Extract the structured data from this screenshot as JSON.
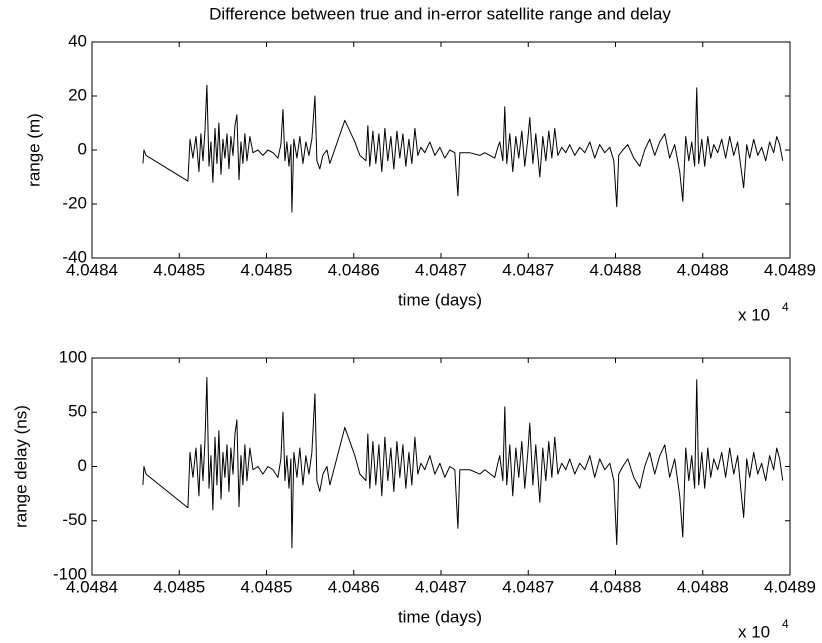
{
  "chart_data": [
    {
      "type": "line",
      "title": "Difference between true and in-error satellite range and delay",
      "xlabel": "time (days)",
      "ylabel": "range (m)",
      "xscale_text": "x 10",
      "xscale_exponent": "4",
      "color": "#000000",
      "xlim": [
        40484,
        40489
      ],
      "xticks": [
        {
          "value": 40484,
          "label": "4.0484"
        },
        {
          "value": 40484.625,
          "label": "4.0485"
        },
        {
          "value": 40485.25,
          "label": "4.0485"
        },
        {
          "value": 40485.875,
          "label": "4.0486"
        },
        {
          "value": 40486.5,
          "label": "4.0487"
        },
        {
          "value": 40487.125,
          "label": "4.0487"
        },
        {
          "value": 40487.75,
          "label": "4.0488"
        },
        {
          "value": 40488.375,
          "label": "4.0488"
        },
        {
          "value": 40489,
          "label": "4.0489"
        }
      ],
      "ylim": [
        -40,
        40
      ],
      "yticks": [
        -40,
        -20,
        0,
        20,
        40
      ],
      "x": [
        40484.365,
        40484.372,
        40484.387,
        40484.687,
        40484.702,
        40484.723,
        40484.745,
        40484.766,
        40484.78,
        40484.795,
        40484.809,
        40484.823,
        40484.838,
        40484.852,
        40484.866,
        40484.881,
        40484.895,
        40484.909,
        40484.924,
        40484.938,
        40484.952,
        40484.967,
        40484.981,
        40484.995,
        40485.01,
        40485.024,
        40485.038,
        40485.053,
        40485.067,
        40485.081,
        40485.095,
        40485.11,
        40485.131,
        40485.153,
        40485.189,
        40485.224,
        40485.26,
        40485.296,
        40485.332,
        40485.353,
        40485.368,
        40485.382,
        40485.396,
        40485.411,
        40485.425,
        40485.432,
        40485.446,
        40485.468,
        40485.489,
        40485.511,
        40485.532,
        40485.554,
        40485.575,
        40485.597,
        40485.611,
        40485.632,
        40485.654,
        40485.683,
        40485.704,
        40485.811,
        40485.883,
        40485.919,
        40485.962,
        40485.976,
        40485.99,
        40486.012,
        40486.033,
        40486.055,
        40486.076,
        40486.098,
        40486.119,
        40486.141,
        40486.162,
        40486.184,
        40486.205,
        40486.227,
        40486.248,
        40486.27,
        40486.291,
        40486.313,
        40486.334,
        40486.356,
        40486.384,
        40486.42,
        40486.456,
        40486.492,
        40486.527,
        40486.563,
        40486.599,
        40486.621,
        40486.635,
        40486.706,
        40486.778,
        40486.814,
        40486.885,
        40486.907,
        40486.921,
        40486.943,
        40486.957,
        40486.971,
        40486.993,
        40487.014,
        40487.036,
        40487.057,
        40487.079,
        40487.1,
        40487.122,
        40487.136,
        40487.158,
        40487.179,
        40487.208,
        40487.229,
        40487.251,
        40487.272,
        40487.294,
        40487.315,
        40487.337,
        40487.365,
        40487.394,
        40487.422,
        40487.458,
        40487.494,
        40487.53,
        40487.566,
        40487.601,
        40487.637,
        40487.673,
        40487.709,
        40487.738,
        40487.759,
        40487.773,
        40487.802,
        40487.838,
        40487.881,
        40487.924,
        40487.959,
        40487.995,
        40488.031,
        40488.067,
        40488.103,
        40488.138,
        40488.174,
        40488.21,
        40488.232,
        40488.253,
        40488.275,
        40488.296,
        40488.317,
        40488.332,
        40488.346,
        40488.368,
        40488.389,
        40488.411,
        40488.432,
        40488.454,
        40488.482,
        40488.511,
        40488.539,
        40488.568,
        40488.597,
        40488.625,
        40488.647,
        40488.668,
        40488.69,
        40488.711,
        40488.74,
        40488.769,
        40488.797,
        40488.826,
        40488.854,
        40488.883,
        40488.905,
        40488.926,
        40488.948
      ],
      "values": [
        -5,
        0,
        -2,
        -11.5,
        4,
        -3,
        5,
        -8,
        6,
        -4,
        7,
        24,
        -6,
        3,
        -12,
        8,
        -5,
        10,
        -9,
        4,
        -3,
        6,
        -7,
        5,
        -2,
        9,
        13,
        -11,
        3,
        -5,
        6,
        -4,
        5,
        -1,
        0,
        -2,
        0,
        -1,
        -3,
        2,
        15,
        -4,
        3,
        -6,
        2,
        -23,
        4,
        -3,
        5,
        -5,
        3,
        -2,
        4,
        20,
        -4,
        -7,
        -2,
        0,
        -5,
        11,
        3,
        -2,
        -4,
        9,
        -6,
        7,
        -5,
        6,
        -8,
        8,
        -4,
        5,
        -7,
        7,
        -3,
        6,
        -6,
        4,
        -5,
        8,
        -2,
        1,
        -1,
        3,
        -2,
        1,
        -3,
        0,
        -1,
        -17,
        -1,
        -1,
        -2,
        -1,
        -3,
        1,
        3,
        -4,
        16,
        -5,
        6,
        -8,
        5,
        -3,
        7,
        -6,
        4,
        12,
        -5,
        6,
        -10,
        5,
        -4,
        7,
        -3,
        8,
        -2,
        1,
        -1,
        2,
        -2,
        1,
        -1,
        3,
        -3,
        2,
        -1,
        1,
        -4,
        -21,
        -2,
        0,
        2,
        -3,
        -6,
        0,
        4,
        -2,
        3,
        6,
        -3,
        2,
        -8,
        -19,
        5,
        -4,
        3,
        -6,
        23,
        -5,
        4,
        -6,
        5,
        -3,
        2,
        -1,
        4,
        -3,
        5,
        -2,
        3,
        -6,
        -14,
        2,
        -3,
        4,
        -2,
        1,
        -4,
        3,
        -1,
        5,
        2,
        -4
      ]
    },
    {
      "type": "line",
      "xlabel": "time (days)",
      "ylabel": "range delay (ns)",
      "xscale_text": "x 10",
      "xscale_exponent": "4",
      "color": "#000000",
      "xlim": [
        40484,
        40489
      ],
      "xticks": [
        {
          "value": 40484,
          "label": "4.0484"
        },
        {
          "value": 40484.625,
          "label": "4.0485"
        },
        {
          "value": 40485.25,
          "label": "4.0485"
        },
        {
          "value": 40485.875,
          "label": "4.0486"
        },
        {
          "value": 40486.5,
          "label": "4.0487"
        },
        {
          "value": 40487.125,
          "label": "4.0487"
        },
        {
          "value": 40487.75,
          "label": "4.0488"
        },
        {
          "value": 40488.375,
          "label": "4.0488"
        },
        {
          "value": 40489,
          "label": "4.0489"
        }
      ],
      "ylim": [
        -100,
        100
      ],
      "yticks": [
        -100,
        -50,
        0,
        50,
        100
      ],
      "x": [
        40484.365,
        40484.372,
        40484.387,
        40484.687,
        40484.702,
        40484.723,
        40484.745,
        40484.766,
        40484.78,
        40484.795,
        40484.809,
        40484.823,
        40484.838,
        40484.852,
        40484.866,
        40484.881,
        40484.895,
        40484.909,
        40484.924,
        40484.938,
        40484.952,
        40484.967,
        40484.981,
        40484.995,
        40485.01,
        40485.024,
        40485.038,
        40485.053,
        40485.067,
        40485.081,
        40485.095,
        40485.11,
        40485.131,
        40485.153,
        40485.189,
        40485.224,
        40485.26,
        40485.296,
        40485.332,
        40485.353,
        40485.368,
        40485.382,
        40485.396,
        40485.411,
        40485.425,
        40485.432,
        40485.446,
        40485.468,
        40485.489,
        40485.511,
        40485.532,
        40485.554,
        40485.575,
        40485.597,
        40485.611,
        40485.632,
        40485.654,
        40485.683,
        40485.704,
        40485.811,
        40485.883,
        40485.919,
        40485.962,
        40485.976,
        40485.99,
        40486.012,
        40486.033,
        40486.055,
        40486.076,
        40486.098,
        40486.119,
        40486.141,
        40486.162,
        40486.184,
        40486.205,
        40486.227,
        40486.248,
        40486.27,
        40486.291,
        40486.313,
        40486.334,
        40486.356,
        40486.384,
        40486.42,
        40486.456,
        40486.492,
        40486.527,
        40486.563,
        40486.599,
        40486.621,
        40486.635,
        40486.706,
        40486.778,
        40486.814,
        40486.885,
        40486.907,
        40486.921,
        40486.943,
        40486.957,
        40486.971,
        40486.993,
        40487.014,
        40487.036,
        40487.057,
        40487.079,
        40487.1,
        40487.122,
        40487.136,
        40487.158,
        40487.179,
        40487.208,
        40487.229,
        40487.251,
        40487.272,
        40487.294,
        40487.315,
        40487.337,
        40487.365,
        40487.394,
        40487.422,
        40487.458,
        40487.494,
        40487.53,
        40487.566,
        40487.601,
        40487.637,
        40487.673,
        40487.709,
        40487.738,
        40487.759,
        40487.773,
        40487.802,
        40487.838,
        40487.881,
        40487.924,
        40487.959,
        40487.995,
        40488.031,
        40488.067,
        40488.103,
        40488.138,
        40488.174,
        40488.21,
        40488.232,
        40488.253,
        40488.275,
        40488.296,
        40488.317,
        40488.332,
        40488.346,
        40488.368,
        40488.389,
        40488.411,
        40488.432,
        40488.454,
        40488.482,
        40488.511,
        40488.539,
        40488.568,
        40488.597,
        40488.625,
        40488.647,
        40488.668,
        40488.69,
        40488.711,
        40488.74,
        40488.769,
        40488.797,
        40488.826,
        40488.854,
        40488.883,
        40488.905,
        40488.926,
        40488.948
      ],
      "values": [
        -17,
        0,
        -7,
        -38,
        13,
        -10,
        17,
        -27,
        20,
        -13,
        23,
        82,
        -20,
        10,
        -40,
        27,
        -17,
        33,
        -30,
        13,
        -10,
        20,
        -23,
        17,
        -7,
        30,
        43,
        -37,
        10,
        -17,
        20,
        -13,
        17,
        -3,
        0,
        -7,
        0,
        -3,
        -10,
        7,
        50,
        -13,
        10,
        -20,
        7,
        -75,
        13,
        -10,
        17,
        -17,
        10,
        -7,
        13,
        67,
        -13,
        -23,
        -7,
        0,
        -17,
        36,
        10,
        -7,
        -13,
        30,
        -20,
        23,
        -17,
        20,
        -27,
        27,
        -13,
        17,
        -23,
        23,
        -10,
        20,
        -20,
        13,
        -17,
        27,
        -7,
        3,
        -3,
        10,
        -7,
        3,
        -10,
        0,
        -3,
        -57,
        -3,
        -3,
        -7,
        -3,
        -10,
        3,
        10,
        -13,
        55,
        -17,
        20,
        -27,
        17,
        -10,
        23,
        -20,
        13,
        40,
        -17,
        20,
        -33,
        17,
        -13,
        23,
        -10,
        27,
        -7,
        3,
        -3,
        7,
        -7,
        3,
        -3,
        10,
        -10,
        7,
        -3,
        3,
        -13,
        -72,
        -7,
        0,
        7,
        -10,
        -20,
        0,
        13,
        -7,
        10,
        20,
        -10,
        7,
        -27,
        -65,
        17,
        -13,
        10,
        -20,
        80,
        -17,
        13,
        -20,
        17,
        -10,
        7,
        -3,
        13,
        -10,
        17,
        -7,
        10,
        -20,
        -47,
        7,
        -10,
        13,
        -7,
        3,
        -13,
        10,
        -3,
        17,
        7,
        -13
      ]
    }
  ]
}
